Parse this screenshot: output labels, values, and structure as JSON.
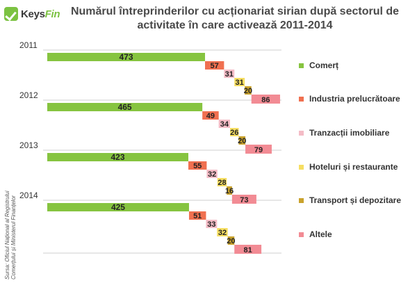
{
  "logo": {
    "brand_main": "Keys",
    "brand_accent": "Fin"
  },
  "title": {
    "line1": "Numărul întreprinderilor cu acționariat sirian după sectorul de",
    "line2": "activitate în care activează 2011-2014"
  },
  "source": {
    "line1": "Sursa: Oficiul Național al Registrului",
    "line2": "Comerțului și Ministerul Finanțelor"
  },
  "chart_data": {
    "type": "bar",
    "orientation": "horizontal-waterfall",
    "categories": [
      "2011",
      "2012",
      "2013",
      "2014"
    ],
    "series": [
      {
        "name": "Comerț",
        "color": "#86c440",
        "values": [
          473,
          465,
          423,
          425
        ]
      },
      {
        "name": "Industria prelucrătoare",
        "color": "#f07050",
        "values": [
          57,
          49,
          55,
          51
        ]
      },
      {
        "name": "Tranzacții imobiliare",
        "color": "#f4bcc6",
        "values": [
          31,
          34,
          32,
          33
        ]
      },
      {
        "name": "Hoteluri și restaurante",
        "color": "#f6de62",
        "values": [
          31,
          26,
          28,
          32
        ]
      },
      {
        "name": "Transport și depozitare",
        "color": "#c9a22c",
        "values": [
          20,
          20,
          16,
          20
        ]
      },
      {
        "name": "Altele",
        "color": "#f28b94",
        "values": [
          86,
          79,
          73,
          81
        ]
      }
    ],
    "legend_position": "right",
    "grid": "horizontal-separators"
  }
}
